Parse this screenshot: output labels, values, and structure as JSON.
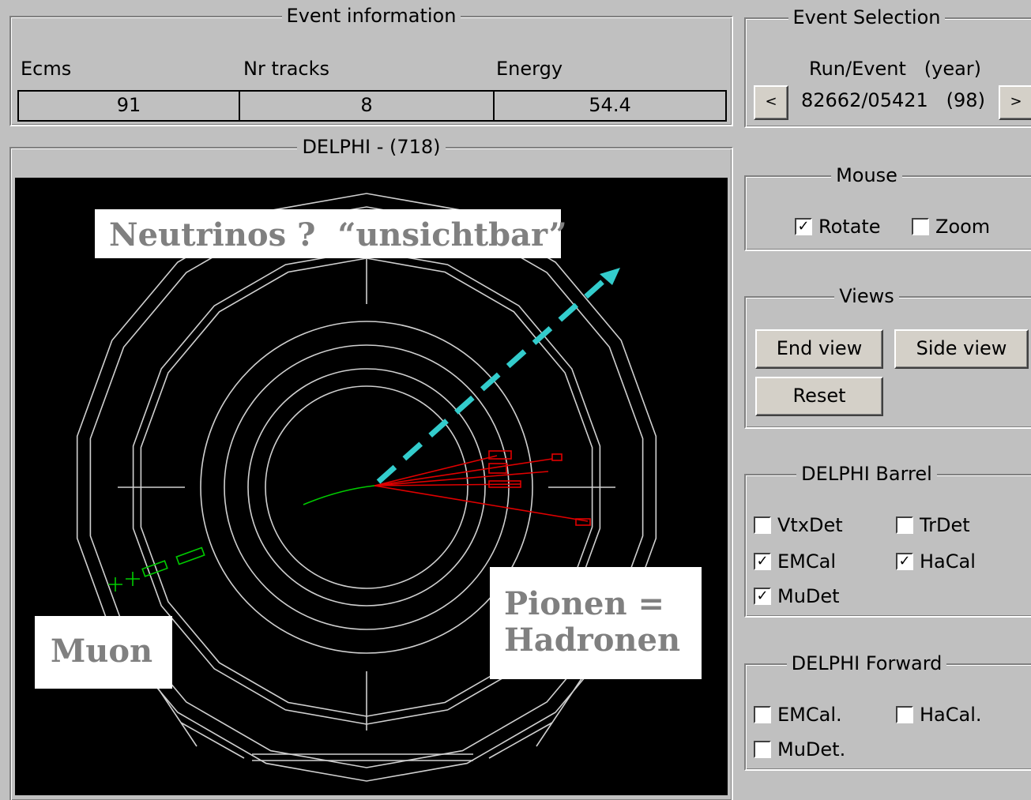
{
  "event_info": {
    "title": "Event information",
    "ecms_label": "Ecms",
    "tracks_label": "Nr tracks",
    "energy_label": "Energy",
    "ecms_value": "91",
    "tracks_value": "8",
    "energy_value": "54.4"
  },
  "event_selection": {
    "title": "Event Selection",
    "run_label": "Run/Event   (year)",
    "prev_label": "<",
    "next_label": ">",
    "run_value": "82662/05421   (98)"
  },
  "display": {
    "title": "DELPHI - (718)",
    "background": "#000000",
    "detector_color": "#d0d0d0",
    "muon_color": "#00cc00",
    "hadron_color": "#e00000",
    "arrow_color": "#33cccc"
  },
  "annotations": {
    "neutrinos": "Neutrinos ?  “unsichtbar”",
    "muon": "Muon",
    "pionen_line1": "Pionen =",
    "pionen_line2": "Hadronen"
  },
  "mouse": {
    "title": "Mouse",
    "rotate_label": "Rotate",
    "rotate_checked": true,
    "zoom_label": "Zoom",
    "zoom_checked": false
  },
  "views": {
    "title": "Views",
    "end_view": "End view",
    "side_view": "Side view",
    "reset": "Reset"
  },
  "barrel": {
    "title": "DELPHI Barrel",
    "items": [
      {
        "label": "VtxDet",
        "checked": false
      },
      {
        "label": "TrDet",
        "checked": false
      },
      {
        "label": "EMCal",
        "checked": true
      },
      {
        "label": "HaCal",
        "checked": true
      },
      {
        "label": "MuDet",
        "checked": true
      }
    ]
  },
  "forward": {
    "title": "DELPHI Forward",
    "items": [
      {
        "label": "EMCal.",
        "checked": false
      },
      {
        "label": "HaCal.",
        "checked": false
      },
      {
        "label": "MuDet.",
        "checked": false
      }
    ]
  }
}
